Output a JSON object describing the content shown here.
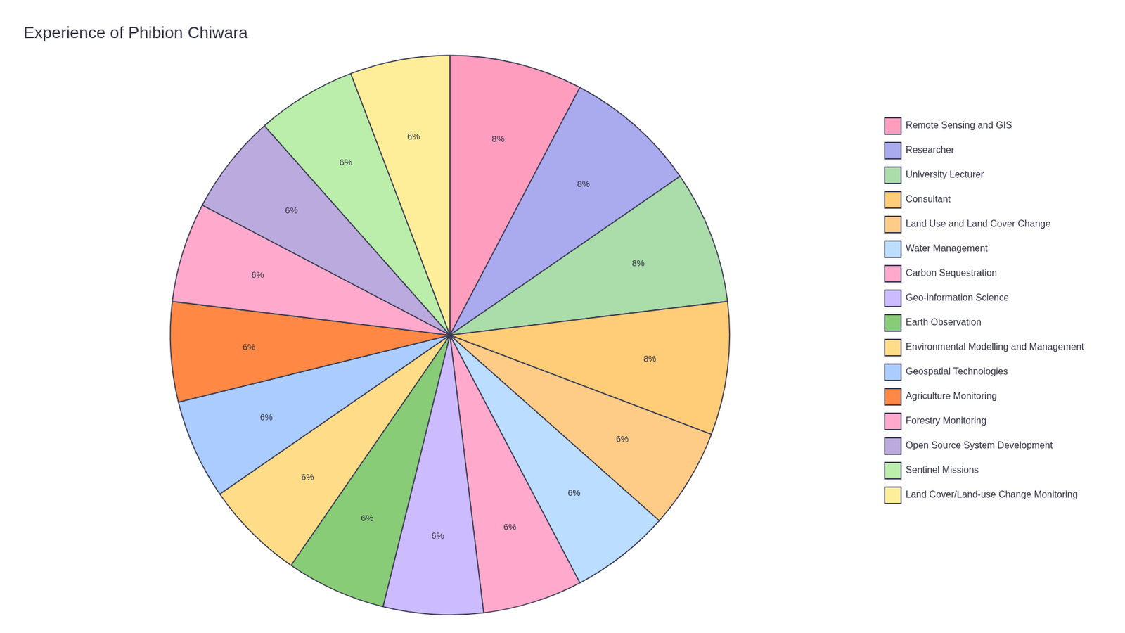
{
  "chart_data": {
    "type": "pie",
    "title": "Experience of Phibion Chiwara",
    "categories": [
      "Remote Sensing and GIS",
      "Researcher",
      "University Lecturer",
      "Consultant",
      "Land Use and Land Cover Change",
      "Water Management",
      "Carbon Sequestration",
      "Geo-information Science",
      "Earth Observation",
      "Environmental Modelling and Management",
      "Geospatial Technologies",
      "Agriculture Monitoring",
      "Forestry Monitoring",
      "Open Source System Development",
      "Sentinel Missions",
      "Land Cover/Land-use Change Monitoring"
    ],
    "values": [
      8,
      8,
      8,
      8,
      6,
      6,
      6,
      6,
      6,
      6,
      6,
      6,
      6,
      6,
      6,
      6
    ],
    "value_labels": [
      "8%",
      "8%",
      "8%",
      "8%",
      "6%",
      "6%",
      "6%",
      "6%",
      "6%",
      "6%",
      "6%",
      "6%",
      "6%",
      "6%",
      "6%",
      "6%"
    ],
    "colors": [
      "#FF9DBF",
      "#AAAAEE",
      "#AADDAA",
      "#FFCC77",
      "#FFCC88",
      "#BBDDFF",
      "#FFAACC",
      "#CCBBFF",
      "#88CC77",
      "#FFDD88",
      "#AACCFF",
      "#FF8844",
      "#FFAACC",
      "#BBAADD",
      "#BBEEAA",
      "#FFEE99"
    ],
    "data_labels": true,
    "legend": "right"
  }
}
